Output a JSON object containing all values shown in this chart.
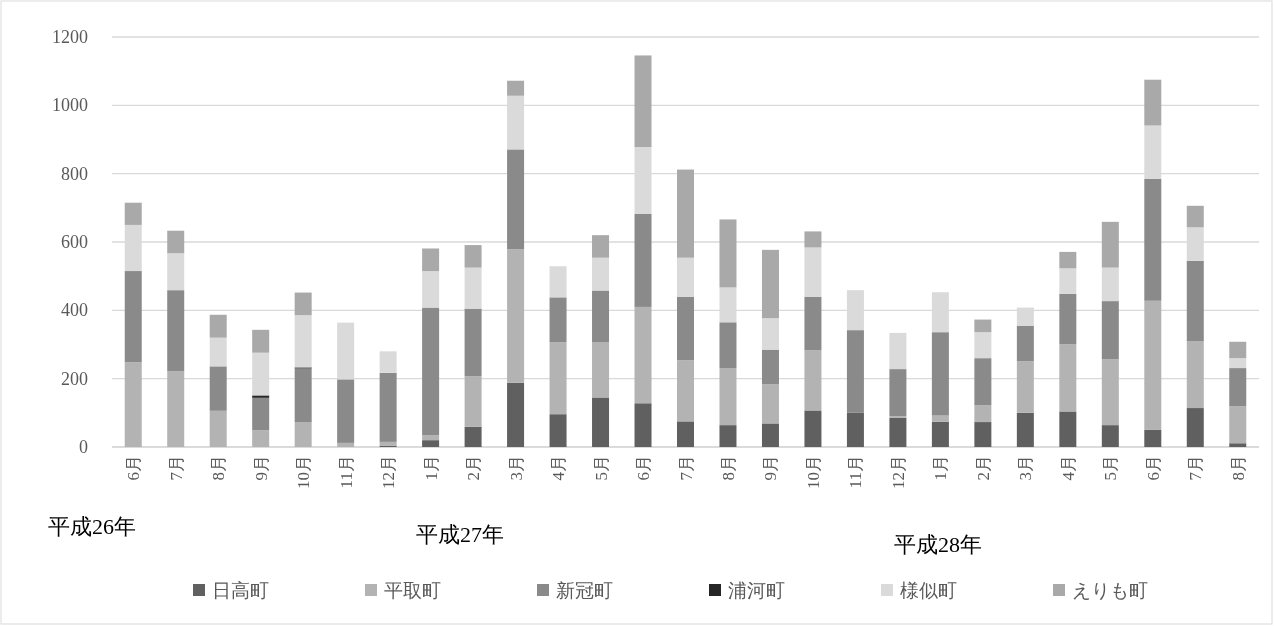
{
  "chart_data": {
    "type": "bar",
    "stacked": true,
    "categories": [
      "6月",
      "7月",
      "8月",
      "9月",
      "10月",
      "11月",
      "12月",
      "1月",
      "2月",
      "3月",
      "4月",
      "5月",
      "6月",
      "7月",
      "8月",
      "9月",
      "10月",
      "11月",
      "12月",
      "1月",
      "2月",
      "3月",
      "4月",
      "5月",
      "6月",
      "7月",
      "8月"
    ],
    "series": [
      {
        "name": "日高町",
        "color": "#606060",
        "values": [
          0,
          0,
          0,
          0,
          0,
          0,
          4,
          20,
          59,
          188,
          96,
          145,
          128,
          75,
          64,
          69,
          107,
          100,
          85,
          74,
          73,
          100,
          104,
          64,
          50,
          114,
          11
        ]
      },
      {
        "name": "平取町",
        "color": "#b3b3b3",
        "values": [
          248,
          222,
          106,
          49,
          73,
          12,
          11,
          14,
          148,
          391,
          211,
          161,
          282,
          179,
          167,
          115,
          176,
          0,
          5,
          18,
          49,
          151,
          197,
          193,
          378,
          195,
          108
        ]
      },
      {
        "name": "新冠町",
        "color": "#8a8a8a",
        "values": [
          267,
          237,
          130,
          95,
          157,
          186,
          202,
          374,
          198,
          292,
          131,
          152,
          272,
          185,
          134,
          101,
          156,
          242,
          138,
          244,
          138,
          104,
          147,
          170,
          357,
          236,
          112
        ]
      },
      {
        "name": "浦河町",
        "color": "#262626",
        "values": [
          0,
          0,
          0,
          7,
          3,
          0,
          0,
          0,
          0,
          0,
          0,
          0,
          0,
          0,
          0,
          0,
          0,
          0,
          0,
          0,
          0,
          0,
          0,
          0,
          0,
          0,
          0
        ]
      },
      {
        "name": "様似町",
        "color": "#dadada",
        "values": [
          135,
          108,
          84,
          125,
          153,
          166,
          63,
          107,
          120,
          157,
          91,
          96,
          196,
          115,
          102,
          92,
          145,
          117,
          106,
          117,
          76,
          53,
          75,
          98,
          156,
          98,
          29
        ]
      },
      {
        "name": "えりも町",
        "color": "#a9a9a9",
        "values": [
          65,
          66,
          67,
          67,
          66,
          0,
          0,
          66,
          66,
          44,
          0,
          66,
          268,
          258,
          199,
          200,
          47,
          0,
          0,
          0,
          37,
          0,
          48,
          134,
          134,
          63,
          48
        ]
      }
    ],
    "ylim": [
      0,
      1200
    ],
    "yticks": [
      0,
      200,
      400,
      600,
      800,
      1000,
      1200
    ],
    "grid": "y",
    "legend": "bottom",
    "annotations": [
      "平成26年",
      "平成27年",
      "平成28年"
    ]
  }
}
